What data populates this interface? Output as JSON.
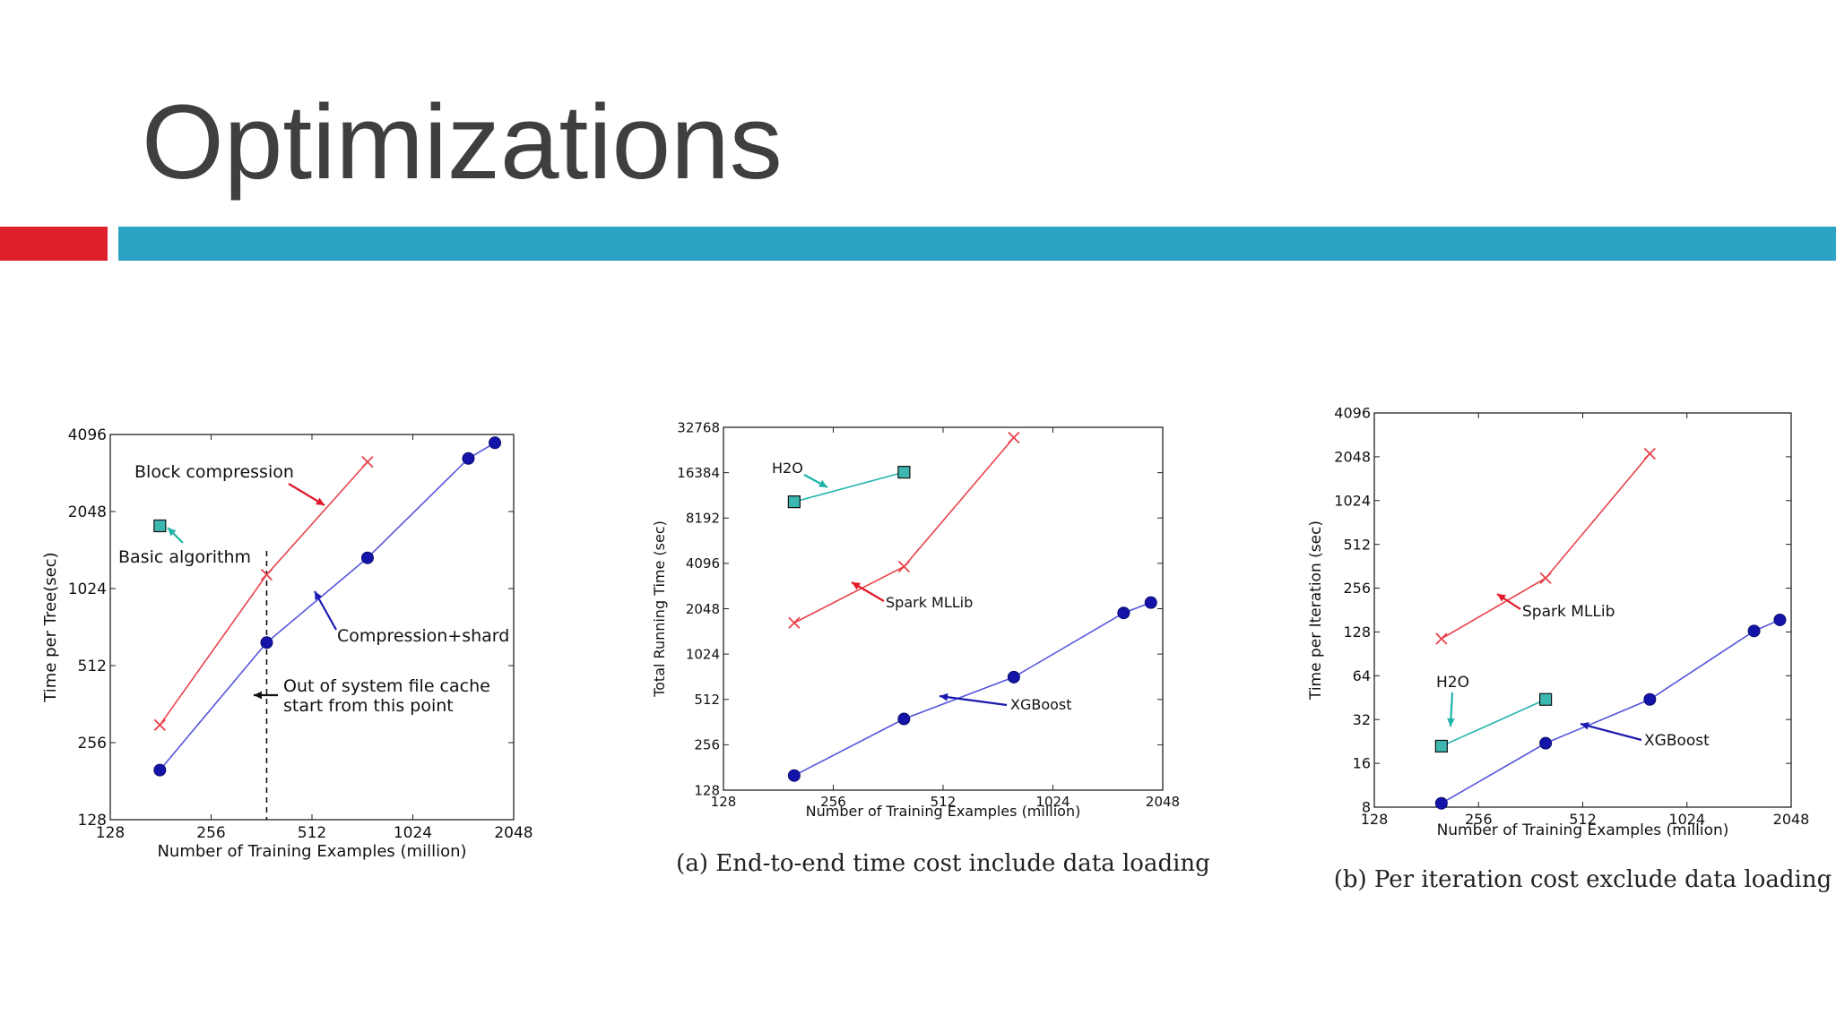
{
  "slide": {
    "title": "Optimizations",
    "colors": {
      "title": "#3f3f3f",
      "accent_red": "#de202c",
      "accent_blue": "#2ba3c4",
      "background": "#ffffff"
    }
  },
  "chart_data": [
    {
      "type": "line",
      "xscale": "log2",
      "yscale": "log2",
      "xlim": [
        128,
        2048
      ],
      "ylim": [
        128,
        4096
      ],
      "xticks": [
        128,
        256,
        512,
        1024,
        2048
      ],
      "yticks": [
        128,
        256,
        512,
        1024,
        2048,
        4096
      ],
      "xlabel": "Number of Training Examples (million)",
      "ylabel": "Time per Tree(sec)",
      "series": [
        {
          "name": "Basic algorithm",
          "color": "#20b2aa",
          "marker": "square",
          "x": [
            180
          ],
          "y": [
            1800
          ]
        },
        {
          "name": "Block compression",
          "color": "#e8434b",
          "marker": "x",
          "x": [
            180,
            375,
            750
          ],
          "y": [
            300,
            1160,
            3200
          ]
        },
        {
          "name": "Compression+shard",
          "color": "#5555dd",
          "marker": "circle",
          "x": [
            180,
            375,
            750,
            1500,
            1800
          ],
          "y": [
            200,
            630,
            1350,
            3300,
            3800
          ]
        }
      ],
      "annotations": [
        {
          "text": "Block compression",
          "series": 1
        },
        {
          "text": "Basic algorithm",
          "series": 0
        },
        {
          "text": "Compression+shard",
          "series": 2
        },
        {
          "text": "Out of system file cache",
          "series": -1
        },
        {
          "text": "start from this point",
          "series": -1
        }
      ],
      "vline": {
        "x": 375
      }
    },
    {
      "type": "line",
      "xscale": "log2",
      "yscale": "log2",
      "xlim": [
        128,
        2048
      ],
      "ylim": [
        128,
        32768
      ],
      "xticks": [
        128,
        256,
        512,
        1024,
        2048
      ],
      "yticks": [
        128,
        256,
        512,
        1024,
        2048,
        4096,
        8192,
        16384,
        32768
      ],
      "xlabel": "Number of Training Examples (million)",
      "ylabel": "Total Running Time (sec)",
      "caption": "(a) End-to-end time cost include data loading",
      "series": [
        {
          "name": "H2O",
          "color": "#20b2aa",
          "marker": "square",
          "x": [
            200,
            400
          ],
          "y": [
            10500,
            16500
          ]
        },
        {
          "name": "Spark MLLib",
          "color": "#e8434b",
          "marker": "x",
          "x": [
            200,
            400,
            800
          ],
          "y": [
            1650,
            3900,
            28000
          ]
        },
        {
          "name": "XGBoost",
          "color": "#5555dd",
          "marker": "circle",
          "x": [
            200,
            400,
            800,
            1600,
            1900
          ],
          "y": [
            160,
            380,
            720,
            1920,
            2250
          ]
        }
      ],
      "annotations": [
        {
          "text": "H2O",
          "series": 0
        },
        {
          "text": "Spark MLLib",
          "series": 1
        },
        {
          "text": "XGBoost",
          "series": 2
        }
      ]
    },
    {
      "type": "line",
      "xscale": "log2",
      "yscale": "log2",
      "xlim": [
        128,
        2048
      ],
      "ylim": [
        8,
        4096
      ],
      "xticks": [
        128,
        256,
        512,
        1024,
        2048
      ],
      "yticks": [
        8,
        16,
        32,
        64,
        128,
        256,
        512,
        1024,
        2048,
        4096
      ],
      "xlabel": "Number of Training Examples (million)",
      "ylabel": "Time per Iteration (sec)",
      "caption": "(b) Per iteration cost exclude data loading",
      "series": [
        {
          "name": "H2O",
          "color": "#20b2aa",
          "marker": "square",
          "x": [
            200,
            400
          ],
          "y": [
            21,
            44
          ]
        },
        {
          "name": "Spark MLLib",
          "color": "#e8434b",
          "marker": "x",
          "x": [
            200,
            400,
            800
          ],
          "y": [
            115,
            300,
            2150
          ]
        },
        {
          "name": "XGBoost",
          "color": "#5555dd",
          "marker": "circle",
          "x": [
            200,
            400,
            800,
            1600,
            1900
          ],
          "y": [
            8.5,
            22,
            44,
            130,
            155
          ]
        }
      ],
      "annotations": [
        {
          "text": "Spark MLLib",
          "series": 1
        },
        {
          "text": "H2O",
          "series": 0
        },
        {
          "text": "XGBoost",
          "series": 2
        }
      ]
    }
  ]
}
